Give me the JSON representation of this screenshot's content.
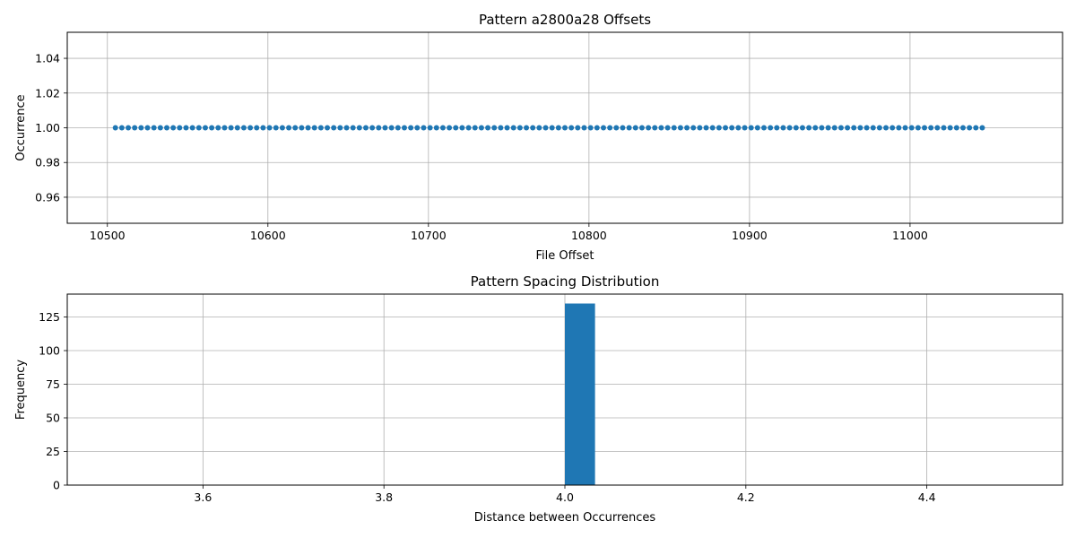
{
  "chart_data": [
    {
      "type": "scatter",
      "title": "Pattern a2800a28 Offsets",
      "xlabel": "File Offset",
      "ylabel": "Occurrence",
      "xlim": [
        10475,
        11095
      ],
      "ylim": [
        0.945,
        1.055
      ],
      "xticks": [
        "10500",
        "10600",
        "10700",
        "10800",
        "10900",
        "11000"
      ],
      "yticks": [
        "0.96",
        "0.98",
        "1.00",
        "1.02",
        "1.04"
      ],
      "grid": true,
      "marker_color": "#1f77b4",
      "points": {
        "x_start": 10505,
        "x_step": 4,
        "count": 136,
        "y": 1.0
      }
    },
    {
      "type": "bar",
      "title": "Pattern Spacing Distribution",
      "xlabel": "Distance between Occurrences",
      "ylabel": "Frequency",
      "xlim": [
        3.45,
        4.55
      ],
      "ylim": [
        0,
        142
      ],
      "xticks": [
        "3.6",
        "3.8",
        "4.0",
        "4.2",
        "4.4"
      ],
      "yticks": [
        "0",
        "25",
        "50",
        "75",
        "100",
        "125"
      ],
      "grid": true,
      "bar_color": "#1f77b4",
      "bins": [
        {
          "left": 4.0,
          "right": 4.0333,
          "value": 135
        }
      ]
    }
  ]
}
